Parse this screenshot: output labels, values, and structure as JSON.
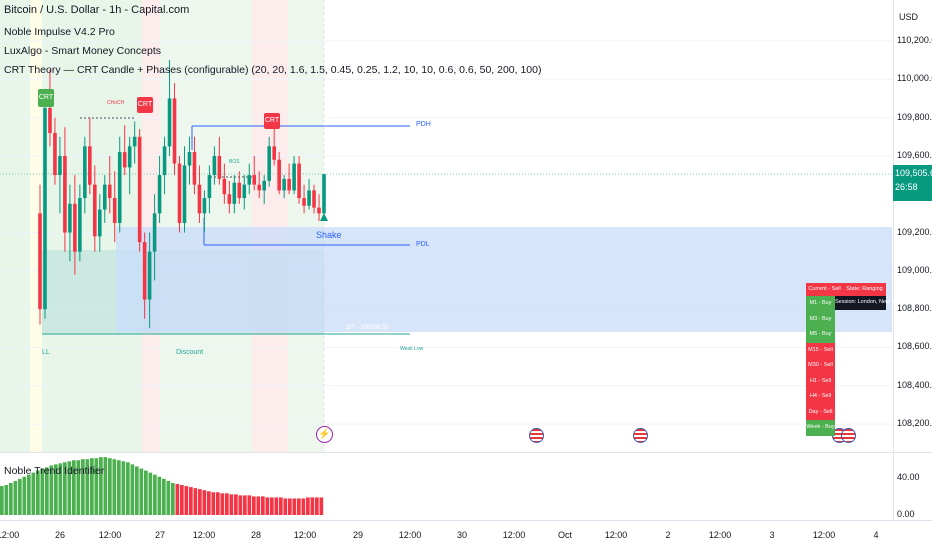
{
  "legend": {
    "title": "Bitcoin / U.S. Dollar - 1h - Capital.com",
    "ind1": "Noble Impulse V4.2 Pro",
    "ind2": "LuxAlgo - Smart Money Concepts",
    "ind3": "CRT Theory — CRT Candle + Phases (configurable) (20, 20, 1.6, 1.5, 0.45, 0.25, 1.2, 10, 10, 0.6, 0.6, 50, 200, 100)"
  },
  "currency": "USD",
  "price_ticks": [
    "110,200.00",
    "110,000.00",
    "109,800.00",
    "109,600.00",
    "109,200.00",
    "109,000.00",
    "108,800.00",
    "108,600.00",
    "108,400.00",
    "108,200.00"
  ],
  "current_price": {
    "value": "109,505.60",
    "countdown": "26:58",
    "color": "#089981"
  },
  "time_ticks": [
    "12:00",
    "26",
    "12:00",
    "27",
    "12:00",
    "28",
    "12:00",
    "29",
    "12:00",
    "30",
    "12:00",
    "Oct",
    "12:00",
    "2",
    "12:00",
    "3",
    "12:00",
    "4"
  ],
  "lower_pane": {
    "title": "Noble Trend Identifier",
    "ticks": [
      "40.00",
      "0.00"
    ],
    "bull_color": "#4caf50",
    "bear_color": "#f23645"
  },
  "annotations": {
    "crt_left": "CRT",
    "crt_right": "CRT",
    "pdh": "PDH",
    "pdl": "PDL",
    "shake": "Shake",
    "ll": "LL",
    "discount": "Discount",
    "weak_low": "Weak Low",
    "bos": "BOS",
    "choch": "CHoCH",
    "equilibrium": "ZIT - 108658.56"
  },
  "status_table": {
    "header": {
      "current": "Current - Sell",
      "state": "State: Ranging",
      "session": "Session: London, New York"
    },
    "rows": [
      {
        "label": "M1 - Buy",
        "dir": "buy"
      },
      {
        "label": "M3 - Buy",
        "dir": "buy"
      },
      {
        "label": "M5 - Buy",
        "dir": "buy"
      },
      {
        "label": "M15 - Sell",
        "dir": "sell"
      },
      {
        "label": "M30 - Sell",
        "dir": "sell"
      },
      {
        "label": "H1 - Sell",
        "dir": "sell"
      },
      {
        "label": "H4 - Sell",
        "dir": "sell"
      },
      {
        "label": "Day - Sell",
        "dir": "sell"
      },
      {
        "label": "Week - Buy",
        "dir": "buy"
      }
    ]
  },
  "colors": {
    "up": "#089981",
    "down": "#f23645",
    "pd_line": "#2962ff",
    "zone": "#c9dcf9"
  },
  "chart_data": {
    "type": "candlestick",
    "series": [
      {
        "ohlc": [
          [
            109300,
            109450,
            108720,
            108800
          ],
          [
            108800,
            109950,
            108750,
            109850
          ],
          [
            109850,
            110050,
            109650,
            109720
          ],
          [
            109720,
            109800,
            109450,
            109500
          ],
          [
            109500,
            109700,
            109300,
            109600
          ],
          [
            109600,
            109750,
            109100,
            109200
          ],
          [
            109200,
            109450,
            109050,
            109350
          ],
          [
            109350,
            109500,
            108980,
            109100
          ],
          [
            109100,
            109450,
            109050,
            109380
          ],
          [
            109380,
            109700,
            109300,
            109650
          ],
          [
            109650,
            109800,
            109400,
            109450
          ],
          [
            109450,
            109550,
            109100,
            109180
          ],
          [
            109180,
            109400,
            109100,
            109320
          ],
          [
            109320,
            109500,
            109250,
            109450
          ],
          [
            109450,
            109600,
            109300,
            109380
          ],
          [
            109380,
            109520,
            109150,
            109250
          ],
          [
            109250,
            109700,
            109200,
            109620
          ],
          [
            109620,
            109760,
            109500,
            109540
          ],
          [
            109540,
            109700,
            109400,
            109650
          ],
          [
            109650,
            109780,
            109560,
            109700
          ],
          [
            109700,
            109740,
            109100,
            109150
          ],
          [
            109150,
            109200,
            108750,
            108850
          ],
          [
            108850,
            109200,
            108700,
            109100
          ],
          [
            109100,
            109400,
            108950,
            109300
          ],
          [
            109300,
            109600,
            109250,
            109500
          ],
          [
            109500,
            109700,
            109400,
            109650
          ],
          [
            109650,
            110100,
            109600,
            109900
          ],
          [
            109900,
            109980,
            109500,
            109560
          ],
          [
            109560,
            109600,
            109200,
            109250
          ],
          [
            109250,
            109650,
            109200,
            109550
          ],
          [
            109550,
            109700,
            109450,
            109620
          ],
          [
            109620,
            109700,
            109400,
            109450
          ],
          [
            109450,
            109550,
            109250,
            109300
          ],
          [
            109300,
            109420,
            109200,
            109380
          ],
          [
            109380,
            109550,
            109300,
            109500
          ],
          [
            109500,
            109650,
            109450,
            109600
          ],
          [
            109600,
            109700,
            109450,
            109480
          ],
          [
            109480,
            109560,
            109350,
            109400
          ],
          [
            109400,
            109470,
            109300,
            109350
          ],
          [
            109350,
            109500,
            109300,
            109460
          ],
          [
            109460,
            109520,
            109350,
            109380
          ],
          [
            109380,
            109500,
            109320,
            109450
          ],
          [
            109450,
            109560,
            109400,
            109500
          ],
          [
            109500,
            109600,
            109420,
            109450
          ],
          [
            109450,
            109520,
            109380,
            109420
          ],
          [
            109420,
            109500,
            109350,
            109470
          ],
          [
            109470,
            109700,
            109440,
            109650
          ],
          [
            109650,
            109760,
            109550,
            109580
          ],
          [
            109580,
            109620,
            109400,
            109420
          ],
          [
            109420,
            109500,
            109380,
            109480
          ],
          [
            109480,
            109560,
            109400,
            109420
          ],
          [
            109420,
            109600,
            109400,
            109560
          ],
          [
            109560,
            109600,
            109350,
            109380
          ],
          [
            109380,
            109450,
            109300,
            109340
          ],
          [
            109340,
            109480,
            109320,
            109420
          ],
          [
            109420,
            109450,
            109300,
            109330
          ],
          [
            109330,
            109400,
            109260,
            109300
          ],
          [
            109300,
            109505,
            109280,
            109505
          ]
        ]
      }
    ],
    "y_range": [
      108200,
      110200
    ],
    "lower_pane": {
      "type": "bar",
      "values": [
        28,
        29,
        31,
        33,
        35,
        37,
        39,
        41,
        43,
        45,
        46,
        48,
        49,
        50,
        51,
        52,
        53,
        53,
        54,
        54,
        55,
        55,
        56,
        56,
        55,
        54,
        53,
        52,
        51,
        49,
        47,
        45,
        43,
        41,
        39,
        37,
        35,
        33,
        31,
        30,
        29,
        28,
        27,
        26,
        25,
        24,
        23,
        22,
        22,
        21,
        21,
        20,
        20,
        19,
        19,
        19,
        18,
        18,
        18,
        17,
        17,
        17,
        17,
        16,
        16,
        16,
        16,
        16,
        17,
        17,
        17,
        17
      ],
      "bull_until_index": 39,
      "y_range": [
        0,
        60
      ]
    }
  }
}
